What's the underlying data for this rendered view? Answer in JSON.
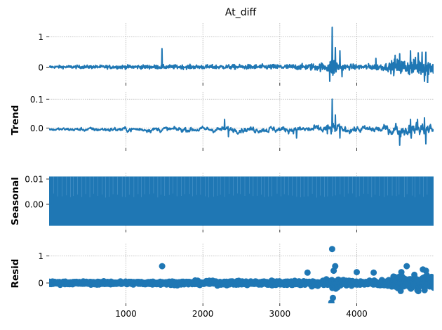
{
  "title": "At_diff",
  "colors": {
    "series": "#1f77b4",
    "grid": "#b0b0b0"
  },
  "chart_data": [
    {
      "type": "line",
      "panel": "observed",
      "ylabel": "",
      "ylim": [
        -0.5,
        1.45
      ],
      "yticks": [
        0,
        1
      ],
      "ytick_labels": [
        "0",
        "1"
      ],
      "xlim": [
        1,
        4999
      ],
      "xticks": [
        1000,
        2000,
        3000,
        4000
      ],
      "show_xtick_labels": false,
      "grid": true,
      "baseline": 0.02,
      "noise": [
        [
          0,
          0.045
        ],
        [
          1000,
          0.06
        ],
        [
          2200,
          0.07
        ],
        [
          3300,
          0.09
        ],
        [
          3600,
          0.14
        ],
        [
          3700,
          0.3
        ],
        [
          3800,
          0.1
        ],
        [
          4000,
          0.08
        ],
        [
          4400,
          0.12
        ],
        [
          4500,
          0.25
        ],
        [
          4800,
          0.28
        ],
        [
          4999,
          0.25
        ]
      ],
      "spikes": [
        [
          1470,
          0.62
        ],
        [
          3680,
          1.32
        ],
        [
          3650,
          -0.45
        ],
        [
          3690,
          -0.25
        ],
        [
          3720,
          0.65
        ],
        [
          3780,
          0.55
        ],
        [
          3810,
          -0.3
        ],
        [
          4250,
          0.3
        ],
        [
          4500,
          0.4
        ],
        [
          4560,
          0.45
        ],
        [
          4700,
          0.55
        ],
        [
          4800,
          0.48
        ],
        [
          4850,
          0.5
        ],
        [
          4880,
          -0.45
        ],
        [
          4900,
          0.5
        ],
        [
          4920,
          -0.5
        ]
      ]
    },
    {
      "type": "line",
      "panel": "trend",
      "ylabel": "Trend",
      "ylim": [
        -0.07,
        0.125
      ],
      "yticks": [
        0,
        0.1
      ],
      "ytick_labels": [
        "0.0",
        "0.1"
      ],
      "xlim": [
        1,
        4999
      ],
      "xticks": [
        1000,
        2000,
        3000,
        4000
      ],
      "show_xtick_labels": false,
      "grid": true,
      "baseline": -0.005,
      "noise": [
        [
          0,
          0.006
        ],
        [
          1000,
          0.01
        ],
        [
          2200,
          0.012
        ],
        [
          3300,
          0.014
        ],
        [
          3600,
          0.02
        ],
        [
          3700,
          0.03
        ],
        [
          3800,
          0.015
        ],
        [
          4000,
          0.015
        ],
        [
          4400,
          0.02
        ],
        [
          4500,
          0.03
        ],
        [
          4999,
          0.03
        ]
      ],
      "spikes": [
        [
          3680,
          0.1
        ],
        [
          3620,
          -0.02
        ],
        [
          3720,
          0.045
        ],
        [
          3780,
          -0.035
        ],
        [
          2280,
          0.03
        ],
        [
          2330,
          -0.03
        ],
        [
          3220,
          -0.035
        ],
        [
          4560,
          -0.06
        ],
        [
          4700,
          0.03
        ],
        [
          4790,
          0.03
        ],
        [
          4880,
          0.035
        ],
        [
          4900,
          -0.055
        ]
      ]
    },
    {
      "type": "area",
      "panel": "seasonal",
      "ylabel": "Seasonal",
      "ylim": [
        -0.01,
        0.0125
      ],
      "yticks": [
        0,
        0.01
      ],
      "ytick_labels": [
        "0.00",
        "0.01"
      ],
      "xlim": [
        1,
        4999
      ],
      "xticks": [
        1000,
        2000,
        3000,
        4000
      ],
      "show_xtick_labels": false,
      "grid": true,
      "band": [
        -0.0085,
        0.011
      ]
    },
    {
      "type": "scatter",
      "panel": "resid",
      "ylabel": "Resid",
      "ylim": [
        -0.75,
        1.45
      ],
      "yticks": [
        0,
        1
      ],
      "ytick_labels": [
        "0",
        "1"
      ],
      "xlim": [
        1,
        4999
      ],
      "xticks": [
        1000,
        2000,
        3000,
        4000
      ],
      "xtick_labels": [
        "1000",
        "2000",
        "3000",
        "4000"
      ],
      "show_xtick_labels": true,
      "grid": true,
      "baseline": 0.0,
      "noise": [
        [
          0,
          0.05
        ],
        [
          1000,
          0.06
        ],
        [
          2200,
          0.07
        ],
        [
          3300,
          0.09
        ],
        [
          3600,
          0.12
        ],
        [
          3700,
          0.25
        ],
        [
          3800,
          0.1
        ],
        [
          4000,
          0.08
        ],
        [
          4400,
          0.12
        ],
        [
          4500,
          0.22
        ],
        [
          4999,
          0.25
        ]
      ],
      "outliers": [
        [
          1470,
          0.62
        ],
        [
          3680,
          1.25
        ],
        [
          3690,
          -0.55
        ],
        [
          3670,
          -0.72
        ],
        [
          3720,
          0.62
        ],
        [
          3360,
          0.38
        ],
        [
          3700,
          0.45
        ],
        [
          4000,
          0.4
        ],
        [
          4220,
          0.38
        ],
        [
          4650,
          0.62
        ],
        [
          4860,
          0.5
        ],
        [
          4900,
          0.45
        ],
        [
          4580,
          0.4
        ],
        [
          4800,
          -0.3
        ]
      ]
    }
  ]
}
